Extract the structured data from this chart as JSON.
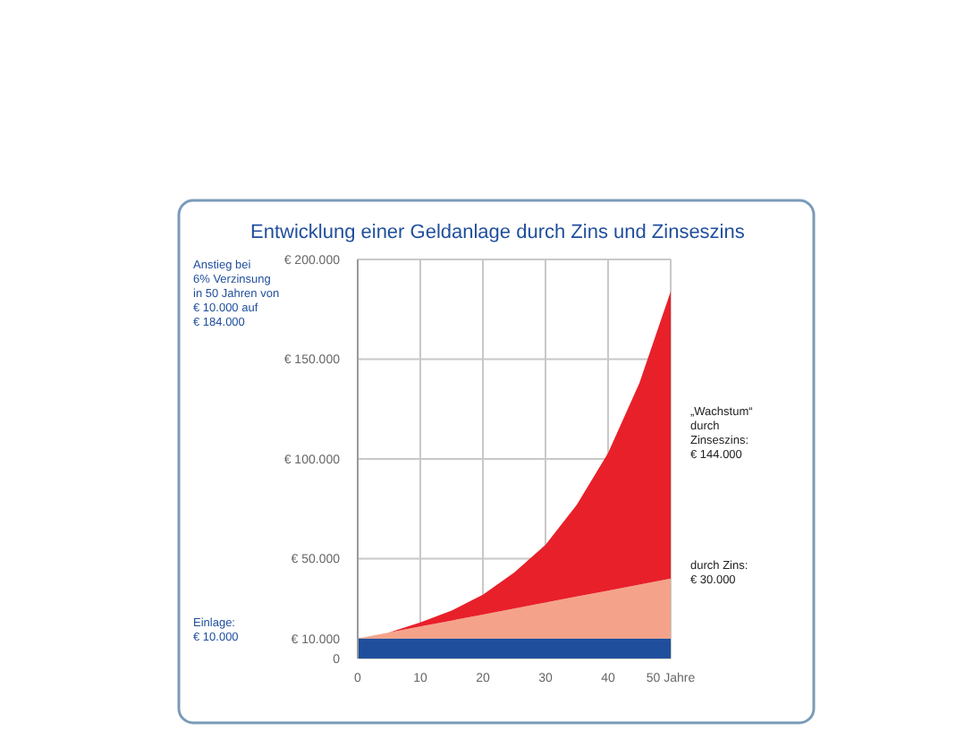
{
  "chart_data": {
    "type": "area",
    "stacked": true,
    "title": "Entwicklung einer Geldanlage durch Zins und Zinseszins",
    "x": [
      0,
      5,
      10,
      15,
      20,
      25,
      30,
      35,
      40,
      45,
      50
    ],
    "series": [
      {
        "color": "#1f4e9c",
        "values": [
          10000,
          10000,
          10000,
          10000,
          10000,
          10000,
          10000,
          10000,
          10000,
          10000,
          10000
        ]
      },
      {
        "color": "#f4a38a",
        "values": [
          0,
          3000,
          6000,
          9000,
          12000,
          15000,
          18000,
          21000,
          24000,
          27000,
          30000
        ]
      },
      {
        "color": "#e8202a",
        "values": [
          0,
          0,
          2000,
          5000,
          10000,
          18000,
          29000,
          46000,
          69000,
          101000,
          144000
        ]
      }
    ],
    "xlim": [
      0,
      50
    ],
    "xticks": [
      0,
      10,
      20,
      30,
      40,
      {
        "value": 50,
        "label": "50 Jahre"
      }
    ],
    "ylim": [
      0,
      200000
    ],
    "yticks": [
      {
        "value": 0,
        "label": "0"
      },
      {
        "value": 10000,
        "label": "€ 10.000"
      },
      {
        "value": 50000,
        "label": "€ 50.000"
      },
      {
        "value": 100000,
        "label": "€ 100.000"
      },
      {
        "value": 150000,
        "label": "€ 150.000"
      },
      {
        "value": 200000,
        "label": "€ 200.000"
      }
    ],
    "grid": true,
    "annotations": [
      "Anstieg bei\n6% Verzinsung\nin 50 Jahren von\n€ 10.000 auf\n€ 184.000",
      "Einlage:\n€ 10.000",
      "„Wachstum“\ndurch\nZinseszins:\n€ 144.000",
      "durch Zins:\n€ 30.000"
    ]
  }
}
